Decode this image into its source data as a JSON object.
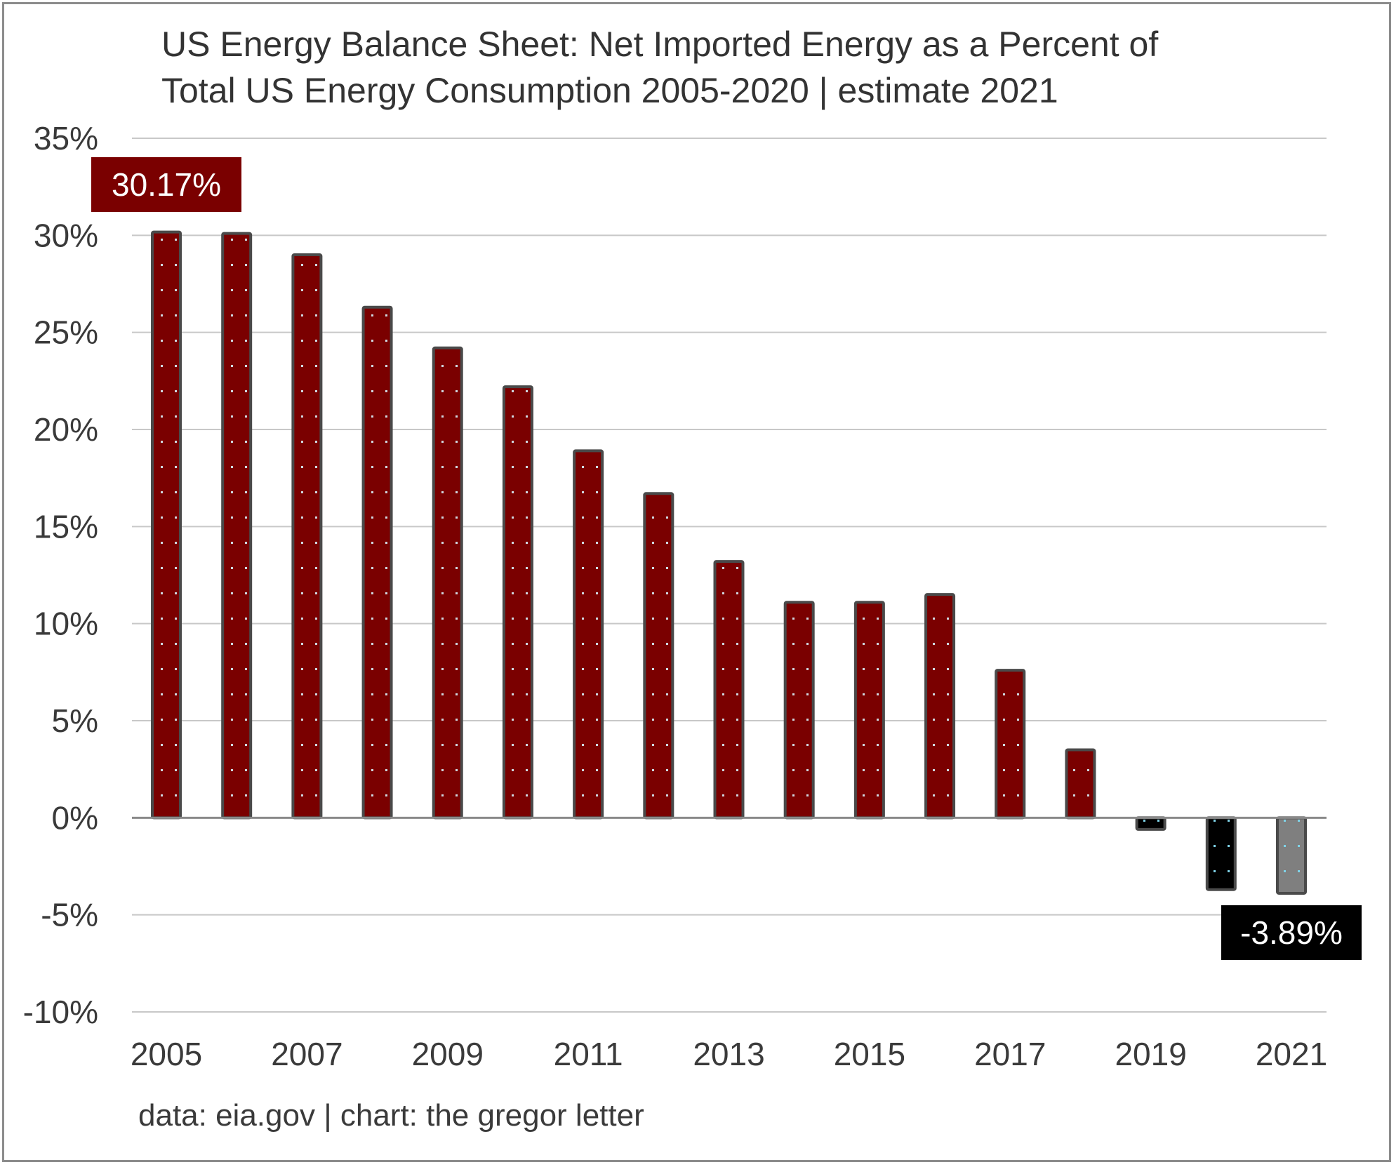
{
  "chart_data": {
    "type": "bar",
    "title_lines": [
      "US Energy Balance Sheet: Net Imported Energy as a Percent of",
      "Total US Energy Consumption 2005-2020 | estimate 2021"
    ],
    "source": "data: eia.gov | chart: the gregor letter",
    "categories": [
      "2005",
      "2006",
      "2007",
      "2008",
      "2009",
      "2010",
      "2011",
      "2012",
      "2013",
      "2014",
      "2015",
      "2016",
      "2017",
      "2018",
      "2019",
      "2020",
      "2021"
    ],
    "x_tick_labels": [
      "2005",
      "",
      "2007",
      "",
      "2009",
      "",
      "2011",
      "",
      "2013",
      "",
      "2015",
      "",
      "2017",
      "",
      "2019",
      "",
      "2021"
    ],
    "values": [
      30.17,
      30.1,
      29.0,
      26.3,
      24.2,
      22.2,
      18.9,
      16.7,
      13.2,
      11.1,
      11.1,
      11.5,
      7.6,
      3.5,
      -0.6,
      -3.7,
      -3.89
    ],
    "bar_colors": [
      "#7a0000",
      "#7a0000",
      "#7a0000",
      "#7a0000",
      "#7a0000",
      "#7a0000",
      "#7a0000",
      "#7a0000",
      "#7a0000",
      "#7a0000",
      "#7a0000",
      "#7a0000",
      "#7a0000",
      "#7a0000",
      "#000000",
      "#000000",
      "#7f7f7f"
    ],
    "ylim": [
      -10,
      35
    ],
    "y_ticks": [
      35,
      30,
      25,
      20,
      15,
      10,
      5,
      0,
      -5,
      -10
    ],
    "y_tick_labels": [
      "35%",
      "30%",
      "25%",
      "20%",
      "15%",
      "10%",
      "5%",
      "0%",
      "-5%",
      "-10%"
    ],
    "grid": true,
    "annotations": [
      {
        "text": "30.17%",
        "category": "2005",
        "background": "#7a0000"
      },
      {
        "text": "-3.89%",
        "category": "2021",
        "background": "#000000"
      }
    ],
    "bar_outline_color": "#4a4a4a"
  }
}
